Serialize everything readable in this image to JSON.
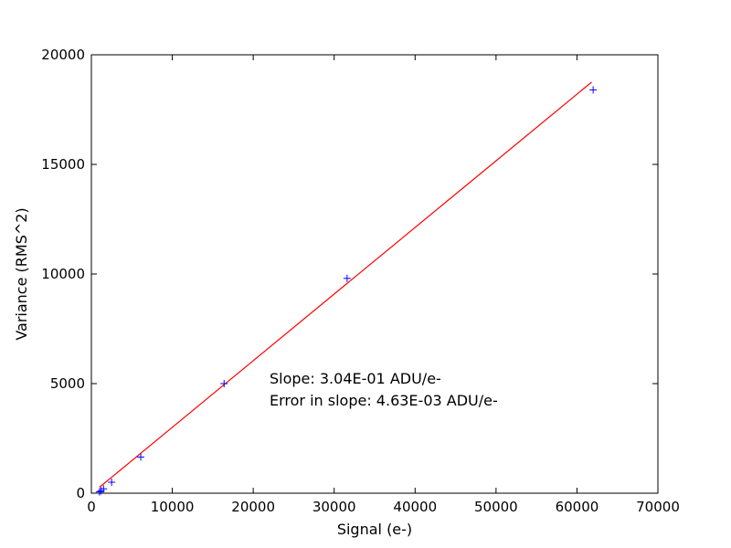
{
  "chart_data": {
    "type": "scatter",
    "title": "",
    "xlabel": "Signal (e-)",
    "ylabel": "Variance (RMS^2)",
    "xlim": [
      0,
      70000
    ],
    "ylim": [
      0,
      20000
    ],
    "x_ticks": [
      "0",
      "10000",
      "20000",
      "30000",
      "40000",
      "50000",
      "60000",
      "70000"
    ],
    "y_ticks": [
      "0",
      "5000",
      "10000",
      "15000",
      "20000"
    ],
    "grid": false,
    "series": [
      {
        "marker": "+",
        "color": "#0000ff",
        "points": [
          [
            1000,
            60
          ],
          [
            1200,
            110
          ],
          [
            1500,
            200
          ],
          [
            2500,
            500
          ],
          [
            6100,
            1650
          ],
          [
            16400,
            5000
          ],
          [
            31600,
            9800
          ],
          [
            62000,
            18400
          ]
        ]
      },
      {
        "kind": "fit-line",
        "color": "#ff0000",
        "points": [
          [
            1000,
            270
          ],
          [
            61800,
            18750
          ]
        ]
      }
    ],
    "annotations": [
      "Slope: 3.04E-01 ADU/e-",
      "Error in slope: 4.63E-03 ADU/e-"
    ]
  }
}
